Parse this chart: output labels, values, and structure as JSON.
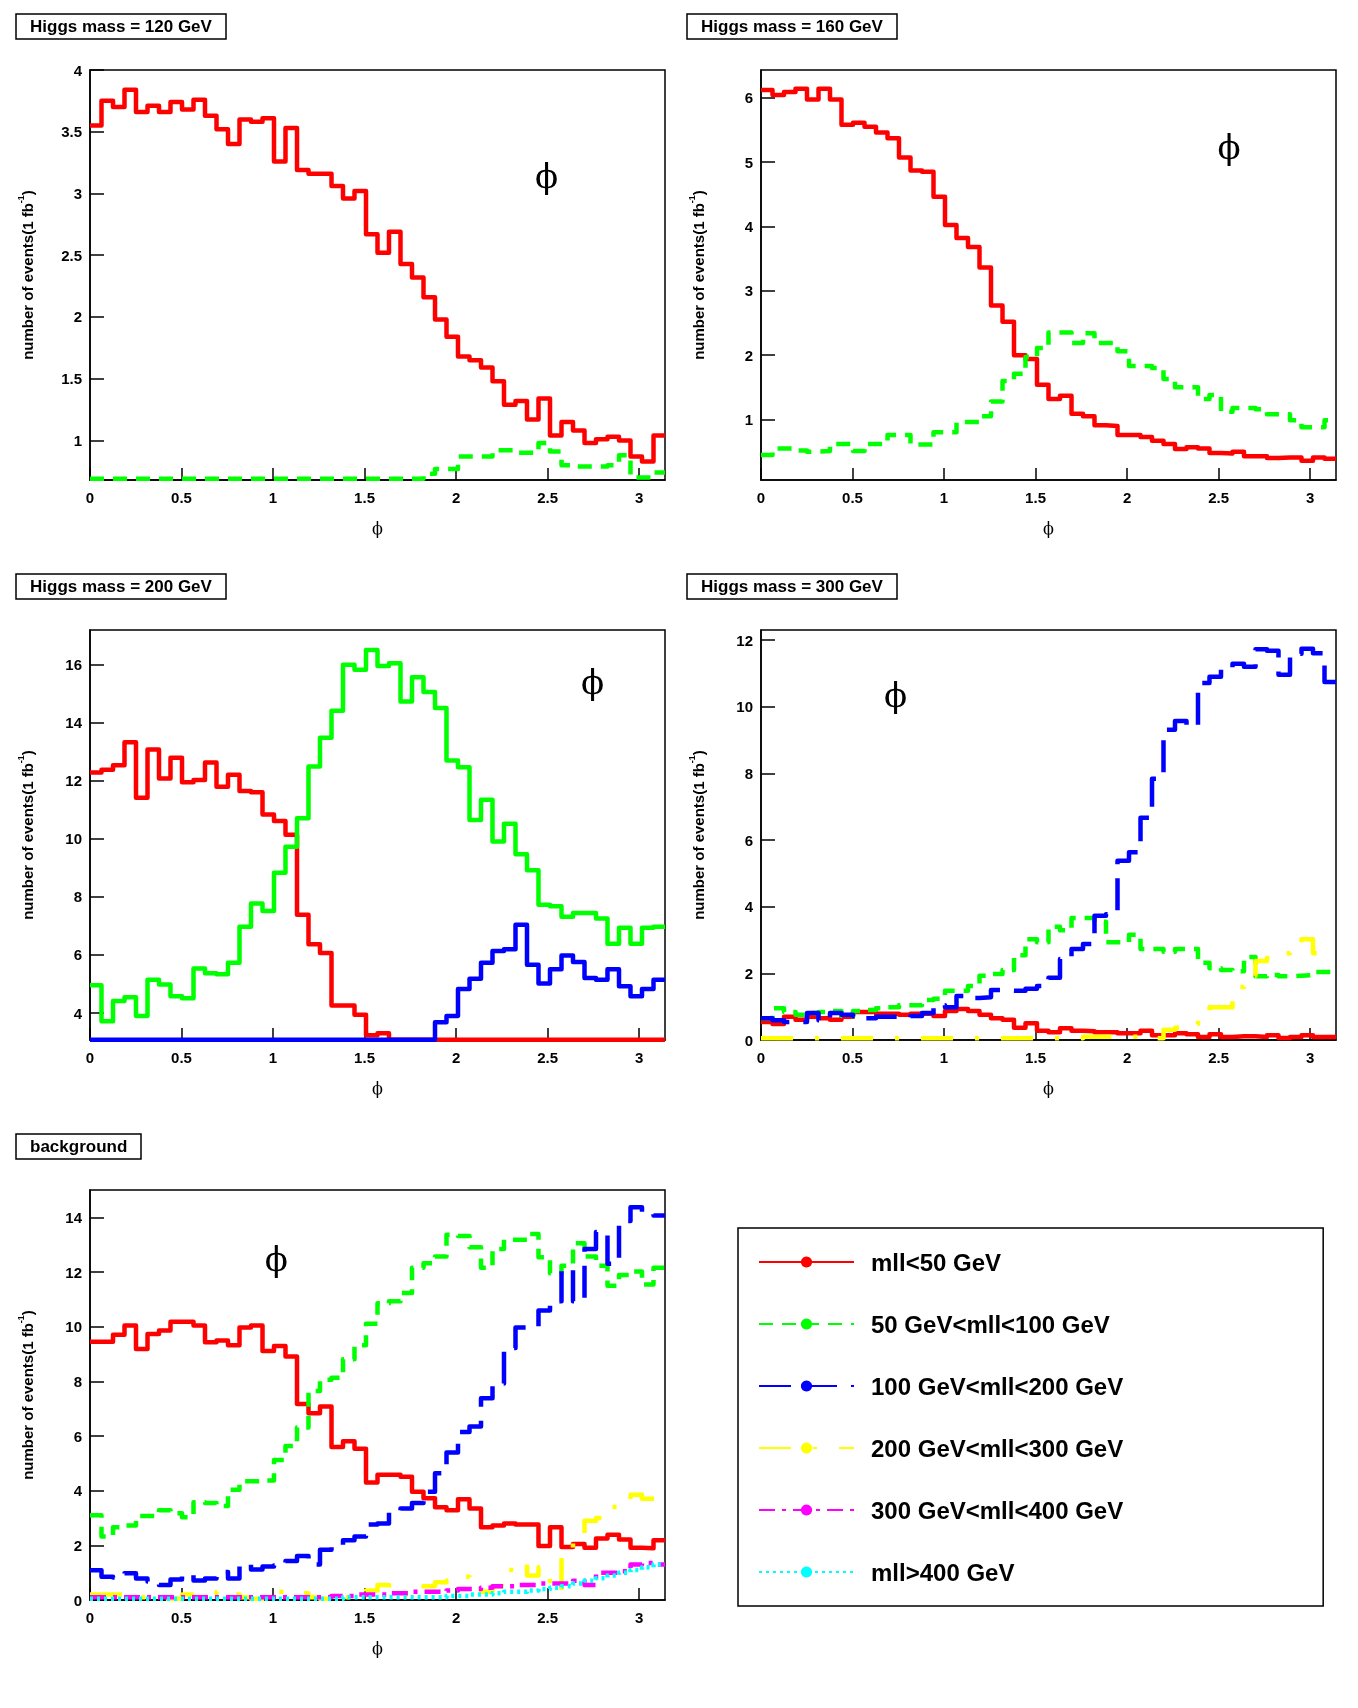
{
  "chart_data": [
    {
      "type": "histogram",
      "title": "Higgs mass = 120 GeV",
      "xlabel": "ϕ",
      "ylabel": "number of events(1 fb$^{-1}$)",
      "annotations": [
        "ϕ"
      ],
      "legend": false,
      "grid": false,
      "bins": [
        0,
        0.0628,
        0.1257,
        0.1885,
        0.2513,
        0.3142,
        0.377,
        0.4398,
        0.5027,
        0.5655,
        0.6283,
        0.6912,
        0.754,
        0.8168,
        0.8796,
        0.9425,
        1.0053,
        1.0681,
        1.131,
        1.1938,
        1.2566,
        1.3195,
        1.3823,
        1.4451,
        1.508,
        1.5708,
        1.6336,
        1.6965,
        1.7593,
        1.8221,
        1.885,
        1.9478,
        2.0106,
        2.0735,
        2.1363,
        2.1991,
        2.2619,
        2.3248,
        2.3876,
        2.4504,
        2.5133,
        2.5761,
        2.6389,
        2.7018,
        2.7646,
        2.8274,
        2.8903,
        2.9531,
        3.0159,
        3.0788,
        3.1416
      ],
      "xlim": [
        0,
        3.1416
      ],
      "xticks": [
        0,
        0.5,
        1,
        1.5,
        2,
        2.5,
        3
      ],
      "ylim": [
        0.68,
        4
      ],
      "yticks": [
        1,
        1.5,
        2,
        2.5,
        3,
        3.5,
        4
      ],
      "series": [
        {
          "color": "#ff0000",
          "line_style": "solid",
          "values": [
            3.55,
            3.75,
            3.7,
            3.84,
            3.66,
            3.71,
            3.66,
            3.74,
            3.68,
            3.76,
            3.63,
            3.52,
            3.4,
            3.6,
            3.58,
            3.61,
            3.26,
            3.53,
            3.19,
            3.16,
            3.16,
            3.06,
            2.96,
            3.02,
            2.67,
            2.52,
            2.69,
            2.43,
            2.32,
            2.16,
            1.98,
            1.84,
            1.68,
            1.65,
            1.59,
            1.48,
            1.29,
            1.32,
            1.17,
            1.34,
            1.04,
            1.15,
            1.08,
            0.98,
            1.01,
            1.03,
            1,
            0.87,
            0.83,
            1.04
          ]
        },
        {
          "color": "#00ff00",
          "line_style": "dashed",
          "values": [
            0.69,
            0.69,
            0.69,
            0.69,
            0.69,
            0.69,
            0.69,
            0.69,
            0.69,
            0.69,
            0.69,
            0.69,
            0.69,
            0.69,
            0.69,
            0.69,
            0.69,
            0.69,
            0.69,
            0.69,
            0.69,
            0.69,
            0.69,
            0.69,
            0.69,
            0.69,
            0.69,
            0.69,
            0.69,
            0.73,
            0.77,
            0.77,
            0.87,
            0.87,
            0.87,
            0.92,
            0.92,
            0.9,
            0.9,
            0.98,
            0.91,
            0.8,
            0.79,
            0.79,
            0.79,
            0.8,
            0.88,
            0.7,
            0.7,
            0.74
          ]
        }
      ]
    },
    {
      "type": "histogram",
      "title": "Higgs mass = 160 GeV",
      "xlabel": "ϕ",
      "ylabel": "number of events(1 fb$^{-1}$)",
      "annotations": [
        "ϕ"
      ],
      "legend": false,
      "grid": false,
      "bins": [
        0,
        0.0628,
        0.1257,
        0.1885,
        0.2513,
        0.3142,
        0.377,
        0.4398,
        0.5027,
        0.5655,
        0.6283,
        0.6912,
        0.754,
        0.8168,
        0.8796,
        0.9425,
        1.0053,
        1.0681,
        1.131,
        1.1938,
        1.2566,
        1.3195,
        1.3823,
        1.4451,
        1.508,
        1.5708,
        1.6336,
        1.6965,
        1.7593,
        1.8221,
        1.885,
        1.9478,
        2.0106,
        2.0735,
        2.1363,
        2.1991,
        2.2619,
        2.3248,
        2.3876,
        2.4504,
        2.5133,
        2.5761,
        2.6389,
        2.7018,
        2.7646,
        2.8274,
        2.8903,
        2.9531,
        3.0159,
        3.0788,
        3.1416
      ],
      "xlim": [
        0,
        3.1416
      ],
      "xticks": [
        0,
        0.5,
        1,
        1.5,
        2,
        2.5,
        3
      ],
      "ylim": [
        0.06,
        6.43
      ],
      "yticks": [
        1,
        2,
        3,
        4,
        5,
        6
      ],
      "series": [
        {
          "color": "#ff0000",
          "line_style": "solid",
          "values": [
            6.12,
            6.04,
            6.09,
            6.14,
            5.97,
            6.14,
            5.97,
            5.58,
            5.61,
            5.55,
            5.46,
            5.37,
            5.07,
            4.87,
            4.85,
            4.46,
            4.02,
            3.82,
            3.68,
            3.36,
            2.77,
            2.52,
            2,
            1.94,
            1.54,
            1.32,
            1.37,
            1.09,
            1.05,
            0.91,
            0.9,
            0.76,
            0.76,
            0.73,
            0.67,
            0.62,
            0.54,
            0.57,
            0.55,
            0.48,
            0.47,
            0.5,
            0.43,
            0.43,
            0.4,
            0.41,
            0.41,
            0.36,
            0.41,
            0.39
          ]
        },
        {
          "color": "#00ff00",
          "line_style": "dashed",
          "values": [
            0.45,
            0.55,
            0.55,
            0.52,
            0.5,
            0.51,
            0.62,
            0.62,
            0.51,
            0.62,
            0.62,
            0.76,
            0.76,
            0.61,
            0.61,
            0.8,
            0.8,
            0.96,
            0.96,
            1.05,
            1.28,
            1.6,
            1.71,
            1.97,
            2.11,
            2.35,
            2.35,
            2.19,
            2.34,
            2.19,
            2.19,
            2.06,
            1.83,
            1.83,
            1.8,
            1.63,
            1.5,
            1.5,
            1.32,
            1.38,
            1.12,
            1.18,
            1.18,
            1.16,
            1.08,
            1.08,
            0.99,
            0.88,
            0.88,
            0.99
          ]
        }
      ]
    },
    {
      "type": "histogram",
      "title": "Higgs mass = 200 GeV",
      "xlabel": "ϕ",
      "ylabel": "number of events(1 fb$^{-1}$)",
      "annotations": [
        "ϕ"
      ],
      "legend": false,
      "grid": false,
      "bins": [
        0,
        0.0628,
        0.1257,
        0.1885,
        0.2513,
        0.3142,
        0.377,
        0.4398,
        0.5027,
        0.5655,
        0.6283,
        0.6912,
        0.754,
        0.8168,
        0.8796,
        0.9425,
        1.0053,
        1.0681,
        1.131,
        1.1938,
        1.2566,
        1.3195,
        1.3823,
        1.4451,
        1.508,
        1.5708,
        1.6336,
        1.6965,
        1.7593,
        1.8221,
        1.885,
        1.9478,
        2.0106,
        2.0735,
        2.1363,
        2.1991,
        2.2619,
        2.3248,
        2.3876,
        2.4504,
        2.5133,
        2.5761,
        2.6389,
        2.7018,
        2.7646,
        2.8274,
        2.8903,
        2.9531,
        3.0159,
        3.0788,
        3.1416
      ],
      "xlim": [
        0,
        3.1416
      ],
      "xticks": [
        0,
        0.5,
        1,
        1.5,
        2,
        2.5,
        3
      ],
      "ylim": [
        3.07,
        17.2
      ],
      "yticks": [
        4,
        6,
        8,
        10,
        12,
        14,
        16
      ],
      "series": [
        {
          "color": "#ff0000",
          "line_style": "solid",
          "values": [
            12.29,
            12.38,
            12.54,
            13.33,
            11.42,
            13.08,
            12.08,
            12.8,
            11.95,
            12.03,
            12.63,
            11.8,
            12.21,
            11.65,
            11.61,
            10.84,
            10.62,
            10.14,
            7.39,
            6.37,
            6.07,
            4.26,
            4.26,
            3.94,
            3.23,
            3.3,
            3.08,
            3.08,
            3.08,
            3.08,
            3.08,
            3.08,
            3.08,
            3.08,
            3.08,
            3.08,
            3.08,
            3.08,
            3.08,
            3.08,
            3.08,
            3.08,
            3.08,
            3.08,
            3.08,
            3.08,
            3.08,
            3.08,
            3.08,
            3.08
          ]
        },
        {
          "color": "#00ff00",
          "line_style": "solid",
          "values": [
            4.96,
            3.72,
            4.41,
            4.54,
            3.9,
            5.15,
            4.98,
            4.58,
            4.51,
            5.53,
            5.37,
            5.34,
            5.73,
            6.97,
            7.77,
            7.52,
            8.83,
            9.73,
            10.71,
            12.5,
            13.49,
            14.42,
            16,
            15.83,
            16.51,
            15.96,
            16.05,
            14.74,
            15.57,
            15.06,
            14.51,
            12.7,
            12.47,
            10.65,
            11.35,
            9.91,
            10.52,
            9.47,
            8.92,
            7.73,
            7.68,
            7.32,
            7.45,
            7.45,
            7.26,
            6.39,
            6.94,
            6.39,
            6.94,
            6.97
          ]
        },
        {
          "color": "#0000ff",
          "line_style": "solid",
          "values": [
            3.08,
            3.08,
            3.08,
            3.08,
            3.08,
            3.08,
            3.08,
            3.08,
            3.08,
            3.08,
            3.08,
            3.08,
            3.08,
            3.08,
            3.08,
            3.08,
            3.08,
            3.08,
            3.08,
            3.08,
            3.08,
            3.08,
            3.08,
            3.08,
            3.08,
            3.08,
            3.08,
            3.08,
            3.08,
            3.08,
            3.68,
            3.9,
            4.83,
            5.18,
            5.73,
            6.14,
            6.2,
            7.04,
            5.66,
            5.02,
            5.51,
            5.98,
            5.76,
            5.21,
            5.15,
            5.51,
            4.92,
            4.58,
            4.83,
            5.15
          ]
        }
      ]
    },
    {
      "type": "histogram",
      "title": "Higgs mass = 300 GeV",
      "xlabel": "ϕ",
      "ylabel": "number of events(1 fb$^{-1}$)",
      "annotations": [
        "ϕ"
      ],
      "legend": false,
      "grid": false,
      "bins": [
        0,
        0.0628,
        0.1257,
        0.1885,
        0.2513,
        0.3142,
        0.377,
        0.4398,
        0.5027,
        0.5655,
        0.6283,
        0.6912,
        0.754,
        0.8168,
        0.8796,
        0.9425,
        1.0053,
        1.0681,
        1.131,
        1.1938,
        1.2566,
        1.3195,
        1.3823,
        1.4451,
        1.508,
        1.5708,
        1.6336,
        1.6965,
        1.7593,
        1.8221,
        1.885,
        1.9478,
        2.0106,
        2.0735,
        2.1363,
        2.1991,
        2.2619,
        2.3248,
        2.3876,
        2.4504,
        2.5133,
        2.5761,
        2.6389,
        2.7018,
        2.7646,
        2.8274,
        2.8903,
        2.9531,
        3.0159,
        3.0788,
        3.1416
      ],
      "xlim": [
        0,
        3.1416
      ],
      "xticks": [
        0,
        0.5,
        1,
        1.5,
        2,
        2.5,
        3
      ],
      "ylim": [
        0,
        12.3
      ],
      "yticks": [
        0,
        2,
        4,
        6,
        8,
        10,
        12
      ],
      "series": [
        {
          "color": "#ff0000",
          "line_style": "solid",
          "values": [
            0.54,
            0.48,
            0.7,
            0.61,
            0.7,
            0.65,
            0.61,
            0.7,
            0.84,
            0.84,
            0.79,
            0.79,
            0.76,
            0.79,
            0.79,
            0.72,
            0.87,
            0.93,
            0.87,
            0.76,
            0.65,
            0.61,
            0.37,
            0.5,
            0.28,
            0.23,
            0.35,
            0.28,
            0.26,
            0.23,
            0.23,
            0.2,
            0.2,
            0.28,
            0.14,
            0.14,
            0.2,
            0.17,
            0.09,
            0.17,
            0.09,
            0.11,
            0.11,
            0.09,
            0.14,
            0.06,
            0.09,
            0.14,
            0.09,
            0.09
          ]
        },
        {
          "color": "#00ff00",
          "line_style": "dashed",
          "values": [
            0.65,
            0.95,
            0.84,
            0.76,
            0.81,
            0.84,
            0.87,
            0.72,
            0.87,
            0.9,
            0.95,
            0.98,
            1.04,
            1.04,
            1.2,
            1.24,
            1.48,
            1.48,
            1.62,
            1.93,
            1.98,
            2.1,
            2.54,
            3.02,
            2.93,
            3.4,
            3.29,
            3.66,
            3.66,
            3.55,
            2.93,
            2.93,
            3.16,
            2.73,
            2.73,
            2.65,
            2.73,
            2.73,
            2.32,
            2.15,
            2.1,
            2.06,
            2.49,
            1.91,
            1.95,
            1.91,
            1.93,
            1.95,
            2.04,
            2.04
          ]
        },
        {
          "color": "#0000ff",
          "line_style": "dashed",
          "values": [
            0.65,
            0.59,
            0.54,
            0.54,
            0.81,
            0.59,
            0.81,
            0.76,
            0.72,
            0.65,
            0.7,
            0.7,
            0.68,
            0.72,
            0.81,
            1.04,
            0.98,
            1.32,
            1.26,
            1.28,
            1.5,
            1.48,
            1.48,
            1.54,
            1.62,
            1.87,
            2.43,
            2.73,
            2.88,
            3.73,
            3.77,
            5.38,
            5.63,
            6.67,
            7.84,
            9.31,
            9.57,
            9.42,
            10.71,
            10.9,
            11.18,
            11.29,
            11.2,
            11.72,
            11.68,
            10.96,
            11.59,
            11.74,
            11.6,
            10.74
          ]
        },
        {
          "color": "#ffff00",
          "line_style": "dashed",
          "values": [
            0.05,
            0.05,
            0.05,
            0.05,
            0.05,
            0.05,
            0.05,
            0.05,
            0.05,
            0.05,
            0.05,
            0.05,
            0.05,
            0.05,
            0.05,
            0.05,
            0.05,
            0.05,
            0.05,
            0.05,
            0.05,
            0.05,
            0.05,
            0.05,
            0.05,
            0.05,
            0.05,
            0.05,
            0.1,
            0.1,
            0.1,
            0.1,
            0.1,
            0.05,
            0.05,
            0.31,
            0.37,
            0.48,
            0.59,
            0.98,
            0.98,
            1.59,
            1.93,
            2.37,
            2.46,
            2.6,
            2.71,
            3.02,
            2.6,
            2.6
          ]
        }
      ]
    },
    {
      "type": "histogram",
      "title": "background",
      "xlabel": "ϕ",
      "ylabel": "number of events(1 fb$^{-1}$)",
      "annotations": [
        "ϕ"
      ],
      "legend": "right",
      "grid": false,
      "bins": [
        0,
        0.0628,
        0.1257,
        0.1885,
        0.2513,
        0.3142,
        0.377,
        0.4398,
        0.5027,
        0.5655,
        0.6283,
        0.6912,
        0.754,
        0.8168,
        0.8796,
        0.9425,
        1.0053,
        1.0681,
        1.131,
        1.1938,
        1.2566,
        1.3195,
        1.3823,
        1.4451,
        1.508,
        1.5708,
        1.6336,
        1.6965,
        1.7593,
        1.8221,
        1.885,
        1.9478,
        2.0106,
        2.0735,
        2.1363,
        2.1991,
        2.2619,
        2.3248,
        2.3876,
        2.4504,
        2.5133,
        2.5761,
        2.6389,
        2.7018,
        2.7646,
        2.8274,
        2.8903,
        2.9531,
        3.0159,
        3.0788,
        3.1416
      ],
      "xlim": [
        0,
        3.1416
      ],
      "xticks": [
        0,
        0.5,
        1,
        1.5,
        2,
        2.5,
        3
      ],
      "ylim": [
        0,
        15
      ],
      "yticks": [
        0,
        2,
        4,
        6,
        8,
        10,
        12,
        14
      ],
      "series": [
        {
          "name": "mll<50 GeV",
          "color": "#ff0000",
          "line_style": "solid",
          "values": [
            9.45,
            9.45,
            9.7,
            10.04,
            9.18,
            9.73,
            9.86,
            10.18,
            10.18,
            10.04,
            9.43,
            9.49,
            9.32,
            9.97,
            10.04,
            9.11,
            9.29,
            8.91,
            7.17,
            6.83,
            7.08,
            5.6,
            5.81,
            5.53,
            4.3,
            4.58,
            4.58,
            4.51,
            3.96,
            3.72,
            3.39,
            3.28,
            3.69,
            3.35,
            2.66,
            2.73,
            2.8,
            2.76,
            2.76,
            1.98,
            2.66,
            1.94,
            2.05,
            1.91,
            2.25,
            2.39,
            2.21,
            1.91,
            1.89,
            2.19
          ]
        },
        {
          "name": "50 GeV<mll<100 GeV",
          "color": "#00ff00",
          "line_style": "dashed",
          "values": [
            3.1,
            2.32,
            2.66,
            2.73,
            3.07,
            3.07,
            3.28,
            3.17,
            3.03,
            3.58,
            3.55,
            3.44,
            4.03,
            4.34,
            4.34,
            4.37,
            5.12,
            5.63,
            6.31,
            7.65,
            8.06,
            8.13,
            8.81,
            9.32,
            10.11,
            10.86,
            10.93,
            11.23,
            12.16,
            12.32,
            12.57,
            13.36,
            13.32,
            12.91,
            12.16,
            12.84,
            13.18,
            13.18,
            13.39,
            12.54,
            11.95,
            12.23,
            13.05,
            12.57,
            12.23,
            11.5,
            11.89,
            12.02,
            11.54,
            12.16
          ]
        },
        {
          "name": "100 GeV<mll<200 GeV",
          "color": "#0000ff",
          "line_style": "dashed",
          "values": [
            1.09,
            0.85,
            0.82,
            0.98,
            0.79,
            0.68,
            0.55,
            0.75,
            0.93,
            0.71,
            0.79,
            1.02,
            0.79,
            1.3,
            1.12,
            1.23,
            1.26,
            1.43,
            1.61,
            1.3,
            1.84,
            1.98,
            2.19,
            2.32,
            2.76,
            2.8,
            3.21,
            3.35,
            3.55,
            3.96,
            4.64,
            5.4,
            6.15,
            6.35,
            7.38,
            7.92,
            9.22,
            9.97,
            9.97,
            10.59,
            10.93,
            12.09,
            10.93,
            12.84,
            13.46,
            12.3,
            13.87,
            14.37,
            14.14,
            14.07
          ]
        },
        {
          "name": "200 GeV<mll<300 GeV",
          "color": "#ffff00",
          "line_style": "dashed",
          "values": [
            0.2,
            0.2,
            0.2,
            0.15,
            0.1,
            0.05,
            0.05,
            0.05,
            0.2,
            0.25,
            0.25,
            0.3,
            0.2,
            0.1,
            0.05,
            0.05,
            0.3,
            0.3,
            0.25,
            0.1,
            0.05,
            0.2,
            0.1,
            0.3,
            0.35,
            0.55,
            0.3,
            0.2,
            0.4,
            0.5,
            0.65,
            0.7,
            0.85,
            0.6,
            0.3,
            0.5,
            1.1,
            1.35,
            0.9,
            1.2,
            0.3,
            1.6,
            2.25,
            2.9,
            3.0,
            3.4,
            3.4,
            3.85,
            3.7,
            3.7
          ]
        },
        {
          "name": "300 GeV<mll<400 GeV",
          "color": "#ff00ff",
          "line_style": "dashed",
          "values": [
            0.1,
            0.1,
            0.1,
            0.1,
            0.1,
            0.1,
            0.1,
            0.1,
            0.1,
            0.1,
            0.1,
            0.1,
            0.1,
            0.1,
            0.1,
            0.1,
            0.1,
            0.1,
            0.1,
            0.1,
            0.1,
            0.15,
            0.15,
            0.2,
            0.2,
            0.2,
            0.25,
            0.25,
            0.3,
            0.3,
            0.3,
            0.35,
            0.4,
            0.4,
            0.45,
            0.5,
            0.5,
            0.55,
            0.55,
            0.6,
            0.6,
            0.6,
            0.7,
            0.55,
            1.0,
            1.0,
            1.05,
            1.3,
            1.35,
            1.3
          ]
        },
        {
          "name": "mll>400 GeV",
          "color": "#00ffff",
          "line_style": "dotted",
          "values": [
            0.05,
            0.05,
            0.05,
            0.05,
            0.05,
            0.05,
            0.05,
            0.05,
            0.05,
            0.05,
            0.05,
            0.05,
            0.05,
            0.05,
            0.05,
            0.05,
            0.05,
            0.05,
            0.05,
            0.05,
            0.05,
            0.05,
            0.1,
            0.1,
            0.1,
            0.1,
            0.1,
            0.1,
            0.1,
            0.1,
            0.1,
            0.15,
            0.15,
            0.2,
            0.2,
            0.25,
            0.3,
            0.3,
            0.35,
            0.4,
            0.45,
            0.5,
            0.6,
            0.7,
            0.8,
            0.9,
            1.0,
            1.1,
            1.2,
            1.3
          ]
        }
      ]
    }
  ]
}
